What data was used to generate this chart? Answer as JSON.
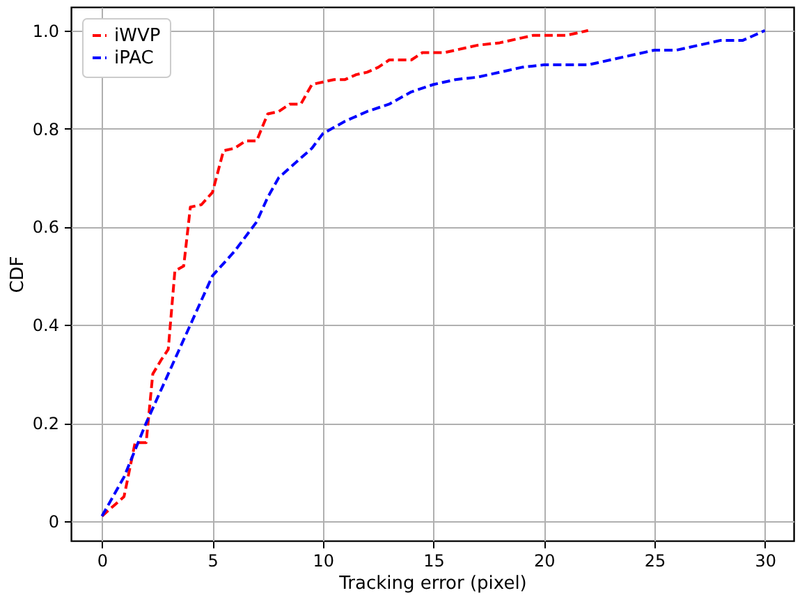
{
  "chart_data": {
    "type": "line",
    "xlabel": "Tracking error (pixel)",
    "ylabel": "CDF",
    "xlim": [
      -1.4,
      31.3
    ],
    "ylim": [
      -0.04,
      1.048
    ],
    "xticks": [
      0,
      5,
      10,
      15,
      20,
      25,
      30
    ],
    "yticks": [
      {
        "value": 0,
        "label": "0"
      },
      0.2,
      0.4,
      0.6,
      0.8,
      {
        "value": 1.0,
        "label": "1.0"
      }
    ],
    "grid": true,
    "legend": "top left",
    "line_style": "dashed",
    "marker": "none",
    "series": [
      {
        "name": "iWVP",
        "color": "#ff0000",
        "x": [
          0,
          0.5,
          1,
          1.5,
          2,
          2.3,
          2.7,
          3,
          3.3,
          3.7,
          4,
          4.5,
          5,
          5.5,
          6,
          6.5,
          7,
          7.5,
          8,
          8.5,
          9,
          9.5,
          10,
          10.5,
          11,
          11.5,
          12,
          12.5,
          13,
          14,
          14.5,
          15.5,
          16,
          17,
          18,
          19,
          19.5,
          21,
          22
        ],
        "values": [
          0.01,
          0.03,
          0.05,
          0.16,
          0.16,
          0.3,
          0.33,
          0.35,
          0.51,
          0.52,
          0.64,
          0.645,
          0.67,
          0.755,
          0.76,
          0.775,
          0.775,
          0.83,
          0.835,
          0.85,
          0.85,
          0.89,
          0.895,
          0.9,
          0.9,
          0.91,
          0.915,
          0.925,
          0.94,
          0.94,
          0.955,
          0.955,
          0.96,
          0.97,
          0.975,
          0.985,
          0.99,
          0.99,
          1.0
        ]
      },
      {
        "name": "iPAC",
        "color": "#0000ff",
        "x": [
          0,
          1,
          2,
          3,
          4,
          5,
          6,
          7,
          7.5,
          8,
          9,
          9.5,
          10,
          11,
          12,
          13,
          14,
          15,
          16,
          17,
          18,
          19,
          20,
          21,
          22,
          23,
          24,
          25,
          26,
          27,
          28,
          29,
          30
        ],
        "values": [
          0.01,
          0.09,
          0.2,
          0.3,
          0.4,
          0.5,
          0.55,
          0.61,
          0.66,
          0.7,
          0.74,
          0.76,
          0.79,
          0.815,
          0.835,
          0.85,
          0.875,
          0.89,
          0.9,
          0.905,
          0.915,
          0.925,
          0.93,
          0.93,
          0.93,
          0.94,
          0.95,
          0.96,
          0.96,
          0.97,
          0.98,
          0.98,
          1.0
        ]
      }
    ]
  }
}
